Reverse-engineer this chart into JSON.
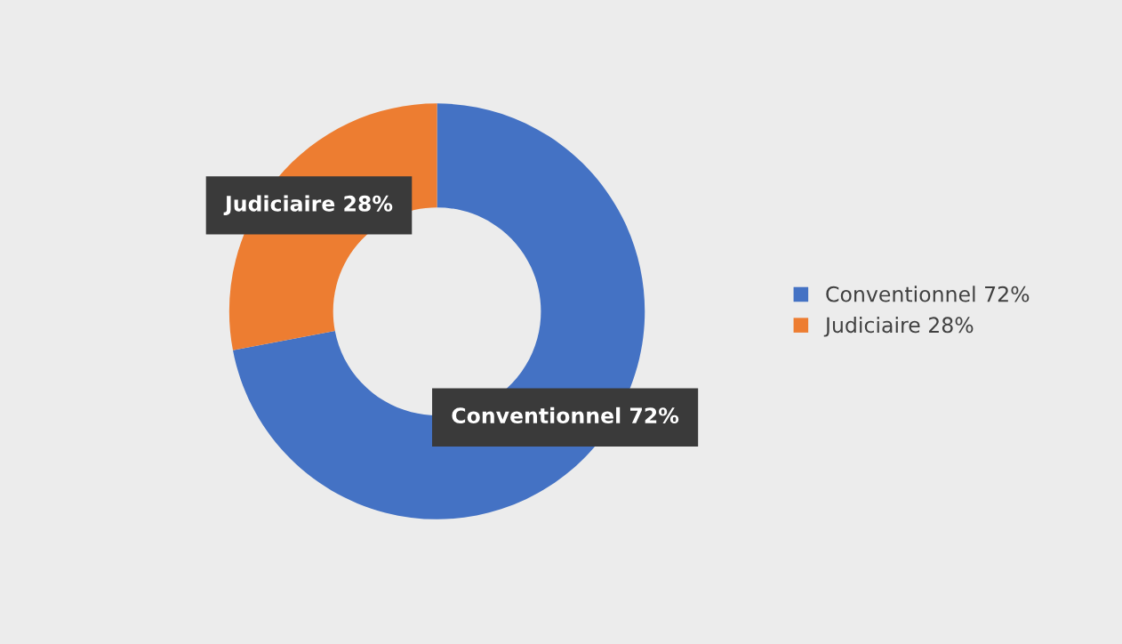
{
  "chart_data": {
    "type": "donut",
    "categories": [
      "Conventionnel 72%",
      "Judiciaire 28%"
    ],
    "values": [
      72,
      28
    ],
    "colors": [
      "#4472c4",
      "#ed7d31"
    ],
    "value_labels": [
      "Conventionnel 72%",
      "Judiciaire 28%"
    ],
    "legend": "right"
  }
}
